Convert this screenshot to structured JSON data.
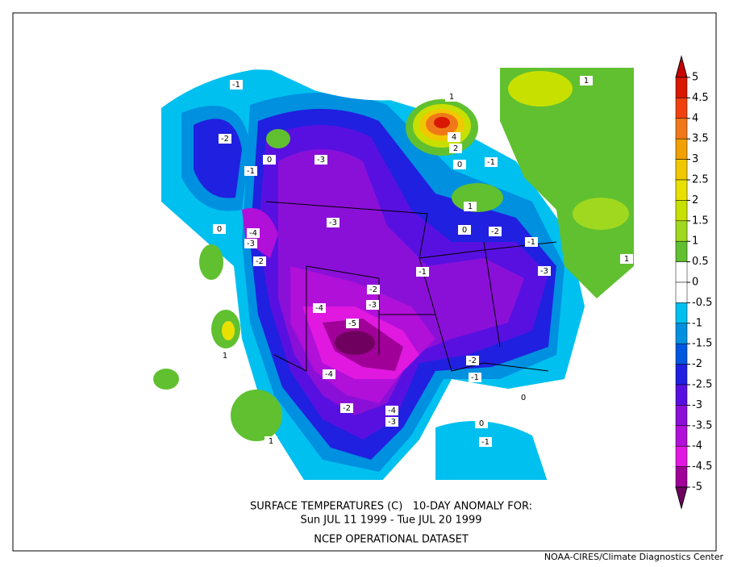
{
  "title_lines": [
    "SURFACE TEMPERATURES (C)   10-DAY ANOMALY FOR:",
    "Sun JUL 11 1999 - Tue JUL 20 1999",
    "NCEP OPERATIONAL DATASET"
  ],
  "credit": "NOAA-CIRES/Climate Diagnostics Center",
  "colorbar": {
    "levels": [
      5,
      4.5,
      4,
      3.5,
      3,
      2.5,
      2,
      1.5,
      1,
      0.5,
      0,
      -0.5,
      -1,
      -1.5,
      -2,
      -2.5,
      -3,
      -3.5,
      -4,
      -4.5,
      -5
    ],
    "colors": [
      "#c80000",
      "#d81800",
      "#f04010",
      "#f07818",
      "#f0a000",
      "#f0c800",
      "#e8e000",
      "#c8e000",
      "#a0d820",
      "#60c030",
      "#ffffff",
      "#ffffff",
      "#00c0f0",
      "#0090e0",
      "#0058e0",
      "#2020e0",
      "#5810e0",
      "#8a10d8",
      "#b010d8",
      "#e018e0",
      "#a00098",
      "#700060"
    ]
  },
  "contour_labels": [
    -1,
    -2,
    -1,
    -3,
    -4,
    -3,
    -2,
    -3,
    -2,
    -3,
    -4,
    -5,
    -4,
    -2,
    -4,
    -3,
    -1,
    -2,
    -1,
    -3,
    -2,
    -1,
    -1,
    -1,
    1,
    1,
    1,
    1,
    1,
    1,
    4,
    2,
    0,
    0,
    0,
    0,
    0,
    0
  ]
}
